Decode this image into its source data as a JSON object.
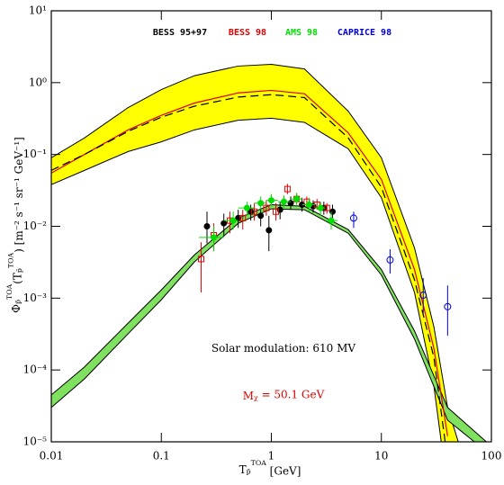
{
  "chart_data": {
    "type": "scatter",
    "xscale": "log",
    "yscale": "log",
    "xlim": [
      0.01,
      100
    ],
    "ylim": [
      1e-05,
      10
    ],
    "xticks": [
      0.01,
      0.1,
      1,
      10,
      100
    ],
    "yticks": [
      {
        "value": 1e-05,
        "label": "10⁻⁵"
      },
      {
        "value": 0.0001,
        "label": "10⁻⁴"
      },
      {
        "value": 0.001,
        "label": "10⁻³"
      },
      {
        "value": 0.01,
        "label": "10⁻²"
      },
      {
        "value": 0.1,
        "label": "10⁻¹"
      },
      {
        "value": 1,
        "label": "10⁰"
      },
      {
        "value": 10,
        "label": "10¹"
      }
    ],
    "x_label": [
      {
        "text": "T"
      },
      {
        "text": "p̄",
        "pos": "sub"
      },
      {
        "text": "TOA",
        "pos": "sup"
      },
      {
        "text": "   [GeV]"
      }
    ],
    "y_label": [
      {
        "text": "Φ"
      },
      {
        "text": "p̄",
        "pos": "sub"
      },
      {
        "text": "TOA",
        "pos": "sup"
      },
      {
        "text": "(T"
      },
      {
        "text": "p̄",
        "pos": "sub"
      },
      {
        "text": "TOA",
        "pos": "sup"
      },
      {
        "text": ")   [m⁻² s⁻¹ sr⁻¹ GeV⁻¹]"
      }
    ],
    "annotations": [
      {
        "parts": [
          {
            "text": "Solar modulation: 610 MV"
          }
        ],
        "color": "#000000"
      },
      {
        "parts": [
          {
            "text": "M"
          },
          {
            "text": "χ",
            "pos": "sub"
          },
          {
            "text": " = 50.1 GeV"
          }
        ],
        "color": "#e00000"
      }
    ],
    "bands": [
      {
        "fill": "#ffff00",
        "edge": "#000000",
        "x_upper": [
          0.01,
          0.02,
          0.05,
          0.1,
          0.2,
          0.5,
          1,
          2,
          5,
          10,
          20,
          30,
          40,
          50
        ],
        "upper": [
          0.09,
          0.17,
          0.45,
          0.8,
          1.25,
          1.7,
          1.8,
          1.55,
          0.4,
          0.09,
          0.005,
          0.0004,
          3e-05,
          1e-05
        ],
        "x_lower": [
          0.01,
          0.02,
          0.05,
          0.1,
          0.2,
          0.5,
          1,
          2,
          5,
          10,
          20,
          30,
          35
        ],
        "lower": [
          0.038,
          0.06,
          0.11,
          0.15,
          0.22,
          0.3,
          0.32,
          0.28,
          0.12,
          0.025,
          0.0012,
          6e-05,
          1e-05
        ]
      },
      {
        "fill": "#80e060",
        "edge": "#000000",
        "x_upper": [
          0.01,
          0.02,
          0.05,
          0.1,
          0.2,
          0.5,
          1,
          2,
          5,
          10,
          20,
          40,
          90
        ],
        "upper": [
          4.5e-05,
          0.00011,
          0.00045,
          0.0013,
          0.004,
          0.013,
          0.02,
          0.019,
          0.009,
          0.0025,
          0.00035,
          3e-05,
          1e-05
        ],
        "x_lower": [
          0.01,
          0.02,
          0.05,
          0.1,
          0.2,
          0.5,
          1,
          2,
          5,
          10,
          20,
          40,
          70
        ],
        "lower": [
          3e-05,
          7.5e-05,
          0.00032,
          0.00095,
          0.0032,
          0.011,
          0.0175,
          0.017,
          0.008,
          0.0021,
          0.00027,
          2e-05,
          1e-05
        ]
      }
    ],
    "curves": [
      {
        "color": "#e00000",
        "dash": false,
        "x": [
          0.01,
          0.02,
          0.05,
          0.1,
          0.2,
          0.5,
          1,
          2,
          5,
          10,
          20,
          30,
          40
        ],
        "values": [
          0.055,
          0.1,
          0.22,
          0.35,
          0.52,
          0.72,
          0.78,
          0.7,
          0.2,
          0.045,
          0.0025,
          0.0002,
          1.2e-05
        ]
      },
      {
        "color": "#000000",
        "dash": true,
        "x": [
          0.01,
          0.02,
          0.05,
          0.1,
          0.2,
          0.5,
          1,
          2,
          5,
          10,
          20,
          30,
          38
        ],
        "values": [
          0.06,
          0.1,
          0.21,
          0.33,
          0.47,
          0.63,
          0.68,
          0.62,
          0.17,
          0.035,
          0.0018,
          0.00015,
          1e-05
        ]
      }
    ],
    "series": [
      {
        "name": "BESS 95+97",
        "color": "#000000",
        "marker": "filled",
        "x": [
          0.26,
          0.37,
          0.5,
          0.65,
          0.8,
          0.95,
          1.2,
          1.5,
          1.9,
          2.4,
          3.0,
          3.6
        ],
        "values": [
          0.01,
          0.011,
          0.013,
          0.016,
          0.014,
          0.0088,
          0.017,
          0.021,
          0.02,
          0.019,
          0.018,
          0.016
        ],
        "y_low": [
          0.0058,
          0.0075,
          0.0095,
          0.012,
          0.01,
          0.0045,
          0.0125,
          0.017,
          0.016,
          0.0155,
          0.0145,
          0.0125
        ],
        "y_high": [
          0.016,
          0.015,
          0.017,
          0.02,
          0.018,
          0.014,
          0.022,
          0.026,
          0.025,
          0.023,
          0.022,
          0.02
        ]
      },
      {
        "name": "BESS 98",
        "color": "#e00000",
        "marker": "open-square",
        "x": [
          0.23,
          0.3,
          0.42,
          0.55,
          0.7,
          0.9,
          1.1,
          1.4,
          1.7,
          2.1,
          2.6,
          3.2
        ],
        "values": [
          0.0035,
          0.0075,
          0.012,
          0.013,
          0.016,
          0.018,
          0.016,
          0.033,
          0.024,
          0.022,
          0.02,
          0.018
        ],
        "y_low": [
          0.0012,
          0.0045,
          0.008,
          0.009,
          0.012,
          0.014,
          0.012,
          0.028,
          0.02,
          0.018,
          0.017,
          0.015
        ],
        "y_high": [
          0.006,
          0.011,
          0.016,
          0.017,
          0.021,
          0.023,
          0.021,
          0.039,
          0.029,
          0.026,
          0.024,
          0.021
        ]
      },
      {
        "name": "AMS 98",
        "color": "#00dd00",
        "marker": "filled",
        "x": [
          0.3,
          0.45,
          0.6,
          0.8,
          1.0,
          1.3,
          1.7,
          2.2,
          2.8,
          3.5
        ],
        "values": [
          0.007,
          0.012,
          0.018,
          0.021,
          0.023,
          0.022,
          0.024,
          0.02,
          0.018,
          0.012
        ],
        "y_low": [
          0.0045,
          0.009,
          0.014,
          0.017,
          0.019,
          0.018,
          0.02,
          0.016,
          0.014,
          0.009
        ],
        "y_high": [
          0.01,
          0.016,
          0.022,
          0.026,
          0.028,
          0.027,
          0.029,
          0.025,
          0.022,
          0.016
        ],
        "x_low": [
          0.22,
          0.37,
          0.5,
          0.7,
          0.9,
          1.15,
          1.5,
          1.9,
          2.5,
          3.1
        ],
        "x_high": [
          0.37,
          0.5,
          0.7,
          0.9,
          1.15,
          1.5,
          1.9,
          2.5,
          3.1,
          4.0
        ]
      },
      {
        "name": "CAPRICE 98",
        "color": "#0000dd",
        "marker": "open-circle",
        "x": [
          5.6,
          12,
          24,
          40
        ],
        "values": [
          0.013,
          0.0034,
          0.0011,
          0.00076
        ],
        "y_low": [
          0.0095,
          0.0022,
          0.0006,
          0.0003
        ],
        "y_high": [
          0.016,
          0.0048,
          0.0019,
          0.0015
        ]
      }
    ]
  }
}
